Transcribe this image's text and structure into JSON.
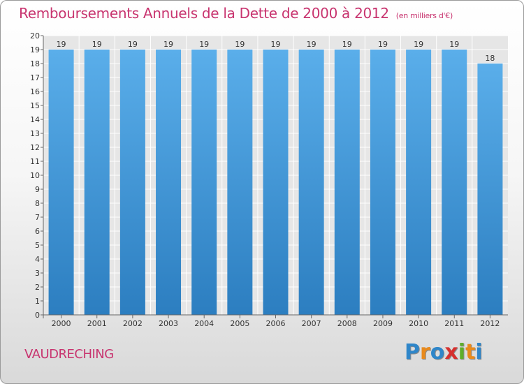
{
  "chart_data": {
    "type": "bar",
    "title": "Remboursements Annuels de la Dette de 2000 à 2012",
    "unit": "(en milliers d'€)",
    "categories": [
      "2000",
      "2001",
      "2002",
      "2003",
      "2004",
      "2005",
      "2006",
      "2007",
      "2008",
      "2009",
      "2010",
      "2011",
      "2012"
    ],
    "values": [
      19,
      19,
      19,
      19,
      19,
      19,
      19,
      19,
      19,
      19,
      19,
      19,
      18
    ],
    "ylim": [
      0,
      20
    ],
    "yticks": [
      0,
      1,
      2,
      3,
      4,
      5,
      6,
      7,
      8,
      9,
      10,
      11,
      12,
      13,
      14,
      15,
      16,
      17,
      18,
      19,
      20
    ],
    "grid": true,
    "bar_color": "#4fa3e3"
  },
  "commune": "VAUDRECHING",
  "logo": {
    "letters": [
      "P",
      "r",
      "o",
      "x",
      "i",
      "t",
      "i"
    ],
    "colors": [
      "#2f86c9",
      "#e98a1c",
      "#2f86c9",
      "#d6312f",
      "#5fae2a",
      "#e98a1c",
      "#2f86c9"
    ]
  }
}
